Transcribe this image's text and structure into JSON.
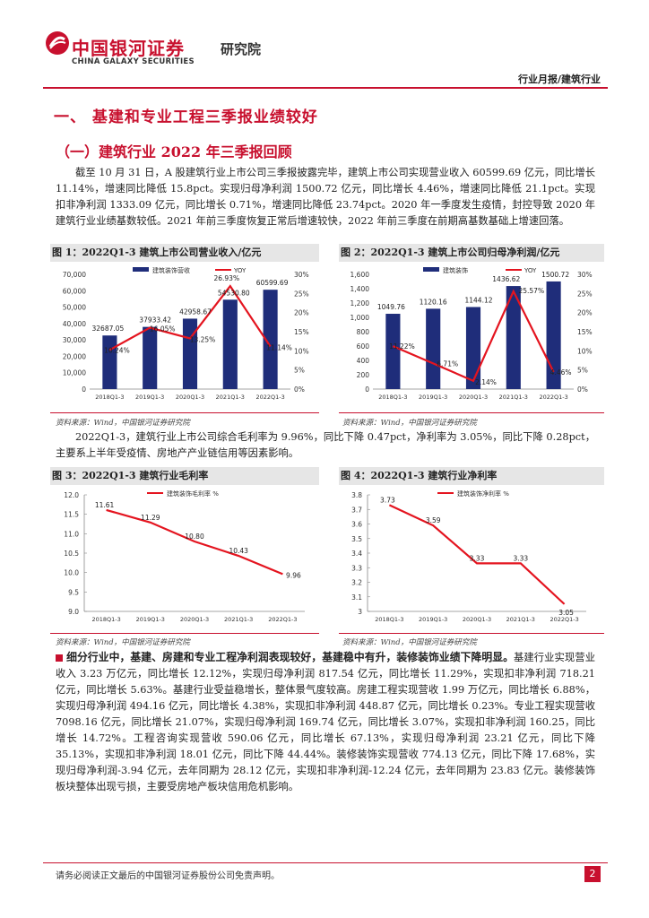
{
  "header": {
    "brand_cn": "中国银河证券",
    "brand_en": "CHINA GALAXY SECURITIES",
    "sub": "研究院",
    "report_type": "行业月报/建筑行业"
  },
  "section": {
    "h1": "一、 基建和专业工程三季报业绩较好",
    "h2": "（一）建筑行业 2022 年三季报回顾",
    "para1": "截至 10 月 31 日，A 股建筑行业上市公司三季报披露完毕，建筑上市公司实现营业收入 60599.69 亿元，同比增长 11.14%，增速同比降低 15.8pct。实现归母净利润 1500.72 亿元，同比增长 4.46%，增速同比降低 21.1pct。实现扣非净利润 1333.09 亿元，同比增长 0.71%，增速同比降低 23.74pct。2020 年一季度发生疫情，封控导致 2020 年建筑行业业绩基数较低。2021 年前三季度恢复正常后增速较快，2022 年前三季度在前期高基数基础上增速回落。",
    "para2": "2022Q1-3，建筑行业上市公司综合毛利率为 9.96%，同比下降 0.47pct，净利率为 3.05%，同比下降 0.28pct，主要系上半年受疫情、房地产产业链信用等因素影响。",
    "para3_bold": "细分行业中，基建、房建和专业工程净利润表现较好，基建稳中有升，装修装饰业绩下降明显。",
    "para3": "基建行业实现营业收入 3.23 万亿元，同比增长 12.12%，实现归母净利润 817.54 亿元，同比增长 11.29%，实现扣非净利润 718.21 亿元，同比增长 5.63%。基建行业受益稳增长，整体景气度较高。房建工程实现营收 1.99 万亿元，同比增长 6.88%，实现归母净利润 494.16 亿元，同比增长 4.38%，实现扣非净利润 448.87 亿元，同比增长 0.23%。专业工程实现营收 7098.16 亿元，同比增长 21.07%，实现归母净利润 169.74 亿元，同比增长 3.07%，实现扣非净利润 160.25，同比增长 14.72%。工程咨询实现营收 590.06 亿元，同比增长 67.13%，实现归母净利润 23.21 亿元，同比下降 35.13%，实现扣非净利润 18.01 亿元，同比下降 44.44%。装修装饰实现营收 774.13 亿元，同比下降 17.68%，实现归母净利润-3.94 亿元，去年同期为 28.12 亿元，实现扣非净利润-12.24 亿元，去年同期为 23.83 亿元。装修装饰板块整体出现亏损，主要受房地产板块信用危机影响。"
  },
  "figures": {
    "fig1_title": "图 1：2022Q1-3 建筑上市公司营业收入/亿元",
    "fig2_title": "图 2：2022Q1-3 建筑上市公司归母净利润/亿元",
    "fig3_title": "图 3：2022Q1-3 建筑行业毛利率",
    "fig4_title": "图 4：2022Q1-3 建筑行业净利率",
    "source": "资料来源：Wind，中国银河证券研究院"
  },
  "chart_data": [
    {
      "type": "bar",
      "categories": [
        "2018Q1-3",
        "2019Q1-3",
        "2020Q1-3",
        "2021Q1-3",
        "2022Q1-3"
      ],
      "series": [
        {
          "name": "建筑装饰营收",
          "values": [
            32687.05,
            37933.42,
            42958.67,
            54530.8,
            60599.69
          ]
        },
        {
          "name": "YOY",
          "values": [
            10.24,
            16.05,
            13.25,
            26.93,
            11.14
          ],
          "axis": "right",
          "type": "line"
        }
      ],
      "value_labels": [
        "32687.05",
        "37933.42",
        "42958.67",
        "54530.80",
        "60599.69"
      ],
      "yoy_labels": [
        "10.24%",
        "16.05%",
        "13.25%",
        "26.93%",
        "11.14%"
      ],
      "ylim": [
        0,
        70000
      ],
      "y2lim": [
        0,
        30
      ],
      "yticks": [
        "0",
        "10,000",
        "20,000",
        "30,000",
        "40,000",
        "50,000",
        "60,000",
        "70,000"
      ],
      "y2ticks": [
        "0%",
        "5%",
        "10%",
        "15%",
        "20%",
        "25%",
        "30%"
      ],
      "legend": "top"
    },
    {
      "type": "bar",
      "categories": [
        "2018Q1-3",
        "2019Q1-3",
        "2020Q1-3",
        "2021Q1-3",
        "2022Q1-3"
      ],
      "series": [
        {
          "name": "建筑装饰",
          "values": [
            1049.76,
            1120.16,
            1144.12,
            1436.62,
            1500.72
          ]
        },
        {
          "name": "YOY",
          "values": [
            11.22,
            6.71,
            2.14,
            25.57,
            4.46
          ],
          "axis": "right",
          "type": "line"
        }
      ],
      "value_labels": [
        "1049.76",
        "1120.16",
        "1144.12",
        "1436.62",
        "1500.72"
      ],
      "yoy_labels": [
        "11.22%",
        "6.71%",
        "2.14%",
        "25.57%",
        "4.46%"
      ],
      "ylim": [
        0,
        1600
      ],
      "y2lim": [
        0,
        30
      ],
      "yticks": [
        "0",
        "200",
        "400",
        "600",
        "800",
        "1,000",
        "1,200",
        "1,400",
        "1,600"
      ],
      "y2ticks": [
        "0%",
        "5%",
        "10%",
        "15%",
        "20%",
        "25%",
        "30%"
      ],
      "legend": "top"
    },
    {
      "type": "line",
      "categories": [
        "2018Q1-3",
        "2019Q1-3",
        "2020Q1-3",
        "2021Q1-3",
        "2022Q1-3"
      ],
      "series": [
        {
          "name": "建筑装饰毛利率 %",
          "values": [
            11.61,
            11.29,
            10.8,
            10.43,
            9.96
          ]
        }
      ],
      "value_labels": [
        "11.61",
        "11.29",
        "10.80",
        "10.43",
        "9.96"
      ],
      "ylim": [
        9.0,
        12.0
      ],
      "yticks": [
        "9.0",
        "9.5",
        "10.0",
        "10.5",
        "11.0",
        "11.5",
        "12.0"
      ],
      "legend": "top"
    },
    {
      "type": "line",
      "categories": [
        "2018Q1-3",
        "2019Q1-3",
        "2020Q1-3",
        "2021Q1-3",
        "2022Q1-3"
      ],
      "series": [
        {
          "name": "建筑装饰净利率 %",
          "values": [
            3.73,
            3.59,
            3.33,
            3.33,
            3.05
          ]
        }
      ],
      "value_labels": [
        "3.73",
        "3.59",
        "3.33",
        "3.33",
        "3.05"
      ],
      "ylim": [
        3.0,
        3.8
      ],
      "yticks": [
        "3",
        "3.1",
        "3.2",
        "3.3",
        "3.4",
        "3.5",
        "3.6",
        "3.7",
        "3.8"
      ],
      "legend": "top"
    }
  ],
  "footer": {
    "note": "请务必阅读正文最后的中国银河证券股份公司免责声明。",
    "page": "2"
  },
  "colors": {
    "accent": "#c8102e",
    "bar": "#1f2d7a",
    "line": "#e4141f"
  }
}
